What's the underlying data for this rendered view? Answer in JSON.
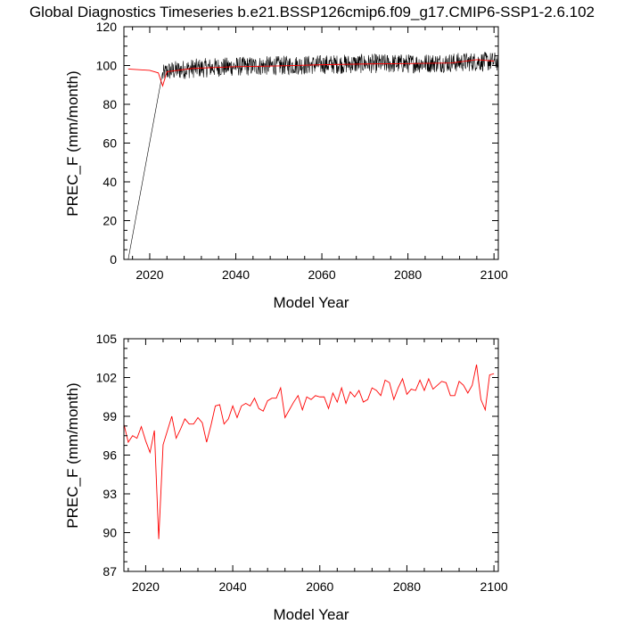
{
  "title": "Global Diagnostics Timeseries b.e21.BSSP126cmip6.f09_g17.CMIP6-SSP1-2.6.102",
  "colors": {
    "monthly_line": "#000000",
    "annual_line": "#ff0000",
    "axes": "#000000"
  },
  "chart_data": [
    {
      "type": "line",
      "xlabel": "Model Year",
      "ylabel": "PREC_F (mm/month)",
      "xlim": [
        2014,
        2101
      ],
      "ylim": [
        0,
        120
      ],
      "xticks": [
        2020,
        2040,
        2060,
        2080,
        2100
      ],
      "yticks": [
        0,
        20,
        40,
        60,
        80,
        100,
        120
      ],
      "xtick_labels": [
        "2020",
        "2040",
        "2060",
        "2080",
        "2100"
      ],
      "ytick_labels": [
        "0",
        "20",
        "40",
        "60",
        "80",
        "100",
        "120"
      ],
      "grid": false,
      "series": [
        {
          "color": "#000000",
          "style": "monthly",
          "x": [
            2015.0,
            2023.0,
            2024.0,
            2030.0,
            2040.0,
            2050.0,
            2060.0,
            2070.0,
            2080.0,
            2090.0,
            2096.0,
            2100.9
          ],
          "values": [
            0,
            95,
            97,
            98.5,
            99.5,
            100,
            100.5,
            101,
            101,
            101.5,
            102,
            102
          ],
          "note_visible_amplitude": 5
        },
        {
          "color": "#ff0000",
          "style": "annual",
          "x": [
            2015,
            2020,
            2022,
            2023,
            2024,
            2030,
            2040,
            2050,
            2060,
            2070,
            2080,
            2090,
            2096,
            2100
          ],
          "values": [
            98.2,
            97.5,
            96.2,
            89.5,
            96.8,
            98.5,
            99.4,
            99.8,
            100.4,
            100.8,
            101.0,
            101.3,
            103.0,
            102.3
          ]
        }
      ]
    },
    {
      "type": "line",
      "xlabel": "Model Year",
      "ylabel": "PREC_F (mm/month)",
      "xlim": [
        2015,
        2101
      ],
      "ylim": [
        87,
        105
      ],
      "xticks": [
        2020,
        2040,
        2060,
        2080,
        2100
      ],
      "yticks": [
        87,
        90,
        93,
        96,
        99,
        102,
        105
      ],
      "xtick_labels": [
        "2020",
        "2040",
        "2060",
        "2080",
        "2100"
      ],
      "ytick_labels": [
        "87",
        "90",
        "93",
        "96",
        "99",
        "102",
        "105"
      ],
      "grid": false,
      "series": [
        {
          "color": "#ff0000",
          "x": [
            2015,
            2016,
            2017,
            2018,
            2019,
            2020,
            2021,
            2022,
            2023,
            2024,
            2025,
            2026,
            2027,
            2028,
            2029,
            2030,
            2031,
            2032,
            2033,
            2034,
            2035,
            2036,
            2037,
            2038,
            2039,
            2040,
            2041,
            2042,
            2043,
            2044,
            2045,
            2046,
            2047,
            2048,
            2049,
            2050,
            2051,
            2052,
            2053,
            2054,
            2055,
            2056,
            2057,
            2058,
            2059,
            2060,
            2061,
            2062,
            2063,
            2064,
            2065,
            2066,
            2067,
            2068,
            2069,
            2070,
            2071,
            2072,
            2073,
            2074,
            2075,
            2076,
            2077,
            2078,
            2079,
            2080,
            2081,
            2082,
            2083,
            2084,
            2085,
            2086,
            2087,
            2088,
            2089,
            2090,
            2091,
            2092,
            2093,
            2094,
            2095,
            2096,
            2097,
            2098,
            2099,
            2100
          ],
          "values": [
            98.4,
            97.0,
            97.5,
            97.3,
            98.2,
            97.1,
            96.2,
            97.9,
            89.5,
            96.8,
            97.9,
            99.0,
            97.3,
            98.0,
            98.8,
            98.4,
            98.4,
            98.9,
            98.5,
            97.0,
            98.3,
            99.8,
            99.9,
            98.4,
            98.8,
            99.8,
            98.9,
            99.8,
            100.0,
            99.8,
            100.4,
            99.6,
            99.4,
            100.2,
            100.4,
            100.4,
            101.2,
            98.9,
            99.5,
            100.1,
            100.6,
            99.5,
            100.5,
            100.3,
            100.6,
            100.5,
            100.5,
            99.6,
            100.8,
            100.1,
            101.2,
            100.0,
            100.9,
            100.5,
            101.0,
            100.1,
            100.3,
            101.2,
            101.0,
            100.6,
            101.8,
            101.6,
            100.3,
            101.2,
            101.9,
            100.7,
            101.1,
            101.0,
            101.8,
            101.0,
            101.9,
            101.1,
            101.4,
            101.7,
            101.6,
            100.6,
            100.6,
            101.7,
            101.4,
            100.8,
            101.4,
            103.0,
            100.3,
            99.5,
            102.2,
            102.3
          ]
        }
      ]
    }
  ]
}
